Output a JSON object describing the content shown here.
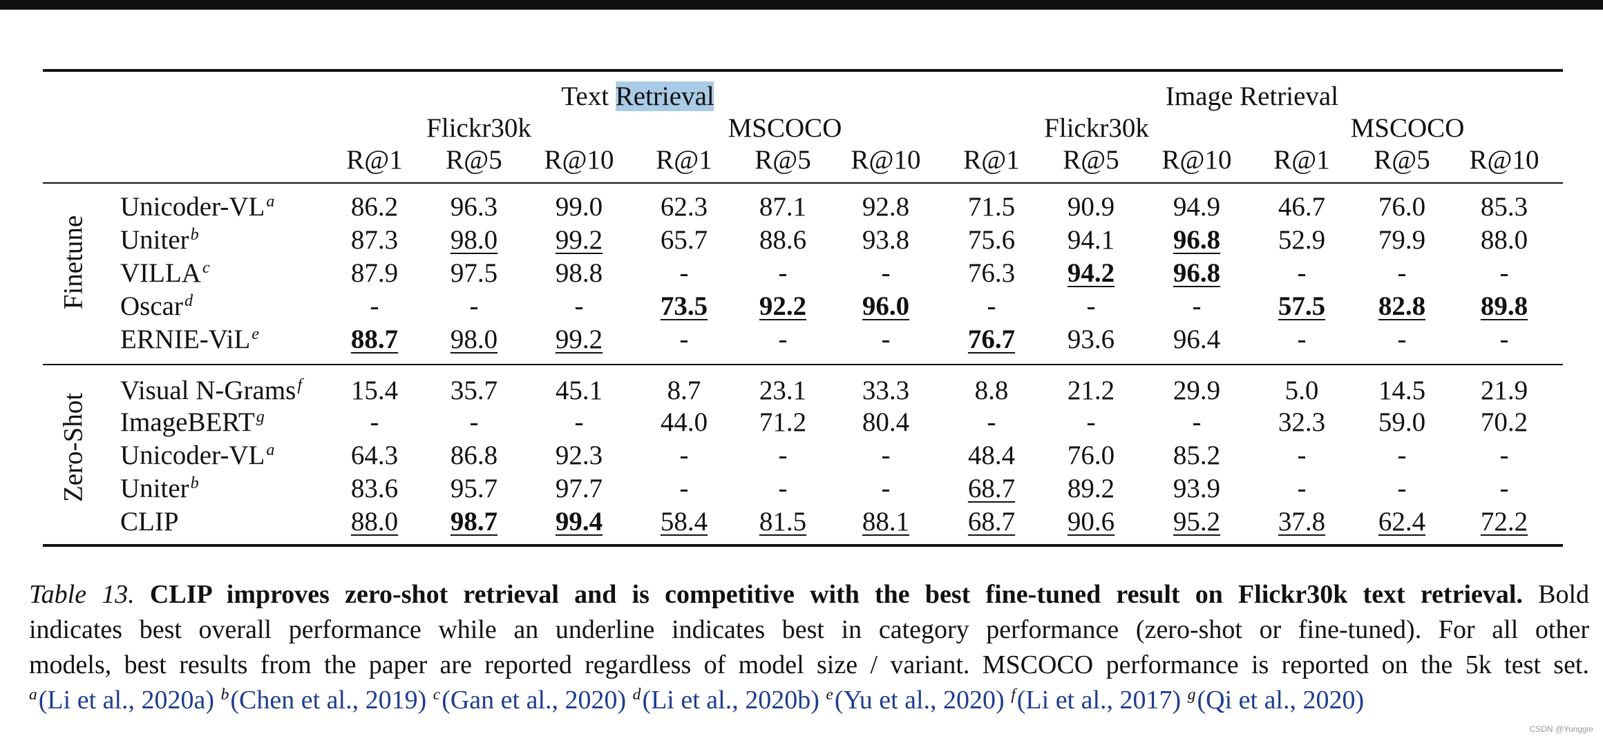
{
  "table": {
    "header": {
      "text_retrieval_prefix": "Text ",
      "text_retrieval_highlight": "Retrieval",
      "image_retrieval": "Image Retrieval",
      "datasets": [
        "Flickr30k",
        "MSCOCO",
        "Flickr30k",
        "MSCOCO"
      ],
      "metrics": [
        "R@1",
        "R@5",
        "R@10",
        "R@1",
        "R@5",
        "R@10",
        "R@1",
        "R@5",
        "R@10",
        "R@1",
        "R@5",
        "R@10"
      ]
    },
    "groups": [
      {
        "label": "Finetune",
        "rows": [
          {
            "model": "Unicoder-VL",
            "sup": "a",
            "cells": [
              {
                "v": "86.2"
              },
              {
                "v": "96.3"
              },
              {
                "v": "99.0"
              },
              {
                "v": "62.3"
              },
              {
                "v": "87.1"
              },
              {
                "v": "92.8"
              },
              {
                "v": "71.5"
              },
              {
                "v": "90.9"
              },
              {
                "v": "94.9"
              },
              {
                "v": "46.7"
              },
              {
                "v": "76.0"
              },
              {
                "v": "85.3"
              }
            ]
          },
          {
            "model": "Uniter",
            "sup": "b",
            "cells": [
              {
                "v": "87.3"
              },
              {
                "v": "98.0",
                "u": true
              },
              {
                "v": "99.2",
                "u": true
              },
              {
                "v": "65.7"
              },
              {
                "v": "88.6"
              },
              {
                "v": "93.8"
              },
              {
                "v": "75.6"
              },
              {
                "v": "94.1"
              },
              {
                "v": "96.8",
                "b": true,
                "u": true
              },
              {
                "v": "52.9"
              },
              {
                "v": "79.9"
              },
              {
                "v": "88.0"
              }
            ]
          },
          {
            "model": "VILLA",
            "sup": "c",
            "cells": [
              {
                "v": "87.9"
              },
              {
                "v": "97.5"
              },
              {
                "v": "98.8"
              },
              {
                "v": "-"
              },
              {
                "v": "-"
              },
              {
                "v": "-"
              },
              {
                "v": "76.3"
              },
              {
                "v": "94.2",
                "b": true,
                "u": true
              },
              {
                "v": "96.8",
                "b": true,
                "u": true
              },
              {
                "v": "-"
              },
              {
                "v": "-"
              },
              {
                "v": "-"
              }
            ]
          },
          {
            "model": "Oscar",
            "sup": "d",
            "cells": [
              {
                "v": "-"
              },
              {
                "v": "-"
              },
              {
                "v": "-"
              },
              {
                "v": "73.5",
                "b": true,
                "u": true
              },
              {
                "v": "92.2",
                "b": true,
                "u": true
              },
              {
                "v": "96.0",
                "b": true,
                "u": true
              },
              {
                "v": "-"
              },
              {
                "v": "-"
              },
              {
                "v": "-"
              },
              {
                "v": "57.5",
                "b": true,
                "u": true
              },
              {
                "v": "82.8",
                "b": true,
                "u": true
              },
              {
                "v": "89.8",
                "b": true,
                "u": true
              }
            ]
          },
          {
            "model": "ERNIE-ViL",
            "sup": "e",
            "cells": [
              {
                "v": "88.7",
                "b": true,
                "u": true
              },
              {
                "v": "98.0",
                "u": true
              },
              {
                "v": "99.2",
                "u": true
              },
              {
                "v": "-"
              },
              {
                "v": "-"
              },
              {
                "v": "-"
              },
              {
                "v": "76.7",
                "b": true,
                "u": true
              },
              {
                "v": "93.6"
              },
              {
                "v": "96.4"
              },
              {
                "v": "-"
              },
              {
                "v": "-"
              },
              {
                "v": "-"
              }
            ]
          }
        ]
      },
      {
        "label": "Zero-Shot",
        "rows": [
          {
            "model": "Visual N-Grams",
            "sup": "f",
            "cells": [
              {
                "v": "15.4"
              },
              {
                "v": "35.7"
              },
              {
                "v": "45.1"
              },
              {
                "v": "8.7"
              },
              {
                "v": "23.1"
              },
              {
                "v": "33.3"
              },
              {
                "v": "8.8"
              },
              {
                "v": "21.2"
              },
              {
                "v": "29.9"
              },
              {
                "v": "5.0"
              },
              {
                "v": "14.5"
              },
              {
                "v": "21.9"
              }
            ]
          },
          {
            "model": "ImageBERT",
            "sup": "g",
            "cells": [
              {
                "v": "-"
              },
              {
                "v": "-"
              },
              {
                "v": "-"
              },
              {
                "v": "44.0"
              },
              {
                "v": "71.2"
              },
              {
                "v": "80.4"
              },
              {
                "v": "-"
              },
              {
                "v": "-"
              },
              {
                "v": "-"
              },
              {
                "v": "32.3"
              },
              {
                "v": "59.0"
              },
              {
                "v": "70.2"
              }
            ]
          },
          {
            "model": "Unicoder-VL",
            "sup": "a",
            "cells": [
              {
                "v": "64.3"
              },
              {
                "v": "86.8"
              },
              {
                "v": "92.3"
              },
              {
                "v": "-"
              },
              {
                "v": "-"
              },
              {
                "v": "-"
              },
              {
                "v": "48.4"
              },
              {
                "v": "76.0"
              },
              {
                "v": "85.2"
              },
              {
                "v": "-"
              },
              {
                "v": "-"
              },
              {
                "v": "-"
              }
            ]
          },
          {
            "model": "Uniter",
            "sup": "b",
            "cells": [
              {
                "v": "83.6"
              },
              {
                "v": "95.7"
              },
              {
                "v": "97.7"
              },
              {
                "v": "-"
              },
              {
                "v": "-"
              },
              {
                "v": "-"
              },
              {
                "v": "68.7",
                "u": true
              },
              {
                "v": "89.2"
              },
              {
                "v": "93.9"
              },
              {
                "v": "-"
              },
              {
                "v": "-"
              },
              {
                "v": "-"
              }
            ]
          },
          {
            "model": "CLIP",
            "sup": "",
            "cells": [
              {
                "v": "88.0",
                "u": true
              },
              {
                "v": "98.7",
                "b": true,
                "u": true
              },
              {
                "v": "99.4",
                "b": true,
                "u": true
              },
              {
                "v": "58.4",
                "u": true
              },
              {
                "v": "81.5",
                "u": true
              },
              {
                "v": "88.1",
                "u": true
              },
              {
                "v": "68.7",
                "u": true
              },
              {
                "v": "90.6",
                "u": true
              },
              {
                "v": "95.2",
                "u": true
              },
              {
                "v": "37.8",
                "u": true
              },
              {
                "v": "62.4",
                "u": true
              },
              {
                "v": "72.2",
                "u": true
              }
            ]
          }
        ]
      }
    ]
  },
  "caption": {
    "label": "Table 13.",
    "bold": "CLIP improves zero-shot retrieval and is competitive with the best fine-tuned result on Flickr30k text retrieval.",
    "lead": "Bold",
    "line2": "indicates best overall performance while an underline indicates best in category performance (zero-shot or fine-tuned). For all other",
    "line3": "models, best results from the paper are reported regardless of model size / variant. MSCOCO performance is reported on the 5k test set.",
    "citations": [
      {
        "sup": "a",
        "text": "(Li et al., 2020a)"
      },
      {
        "sup": "b",
        "text": "(Chen et al., 2019)"
      },
      {
        "sup": "c",
        "text": "(Gan et al., 2020)"
      },
      {
        "sup": "d",
        "text": "(Li et al., 2020b)"
      },
      {
        "sup": "e",
        "text": "(Yu et al., 2020)"
      },
      {
        "sup": "f",
        "text": "(Li et al., 2017)"
      },
      {
        "sup": "g",
        "text": "(Qi et al., 2020)"
      }
    ]
  },
  "watermark": "CSDN @Yonggie"
}
